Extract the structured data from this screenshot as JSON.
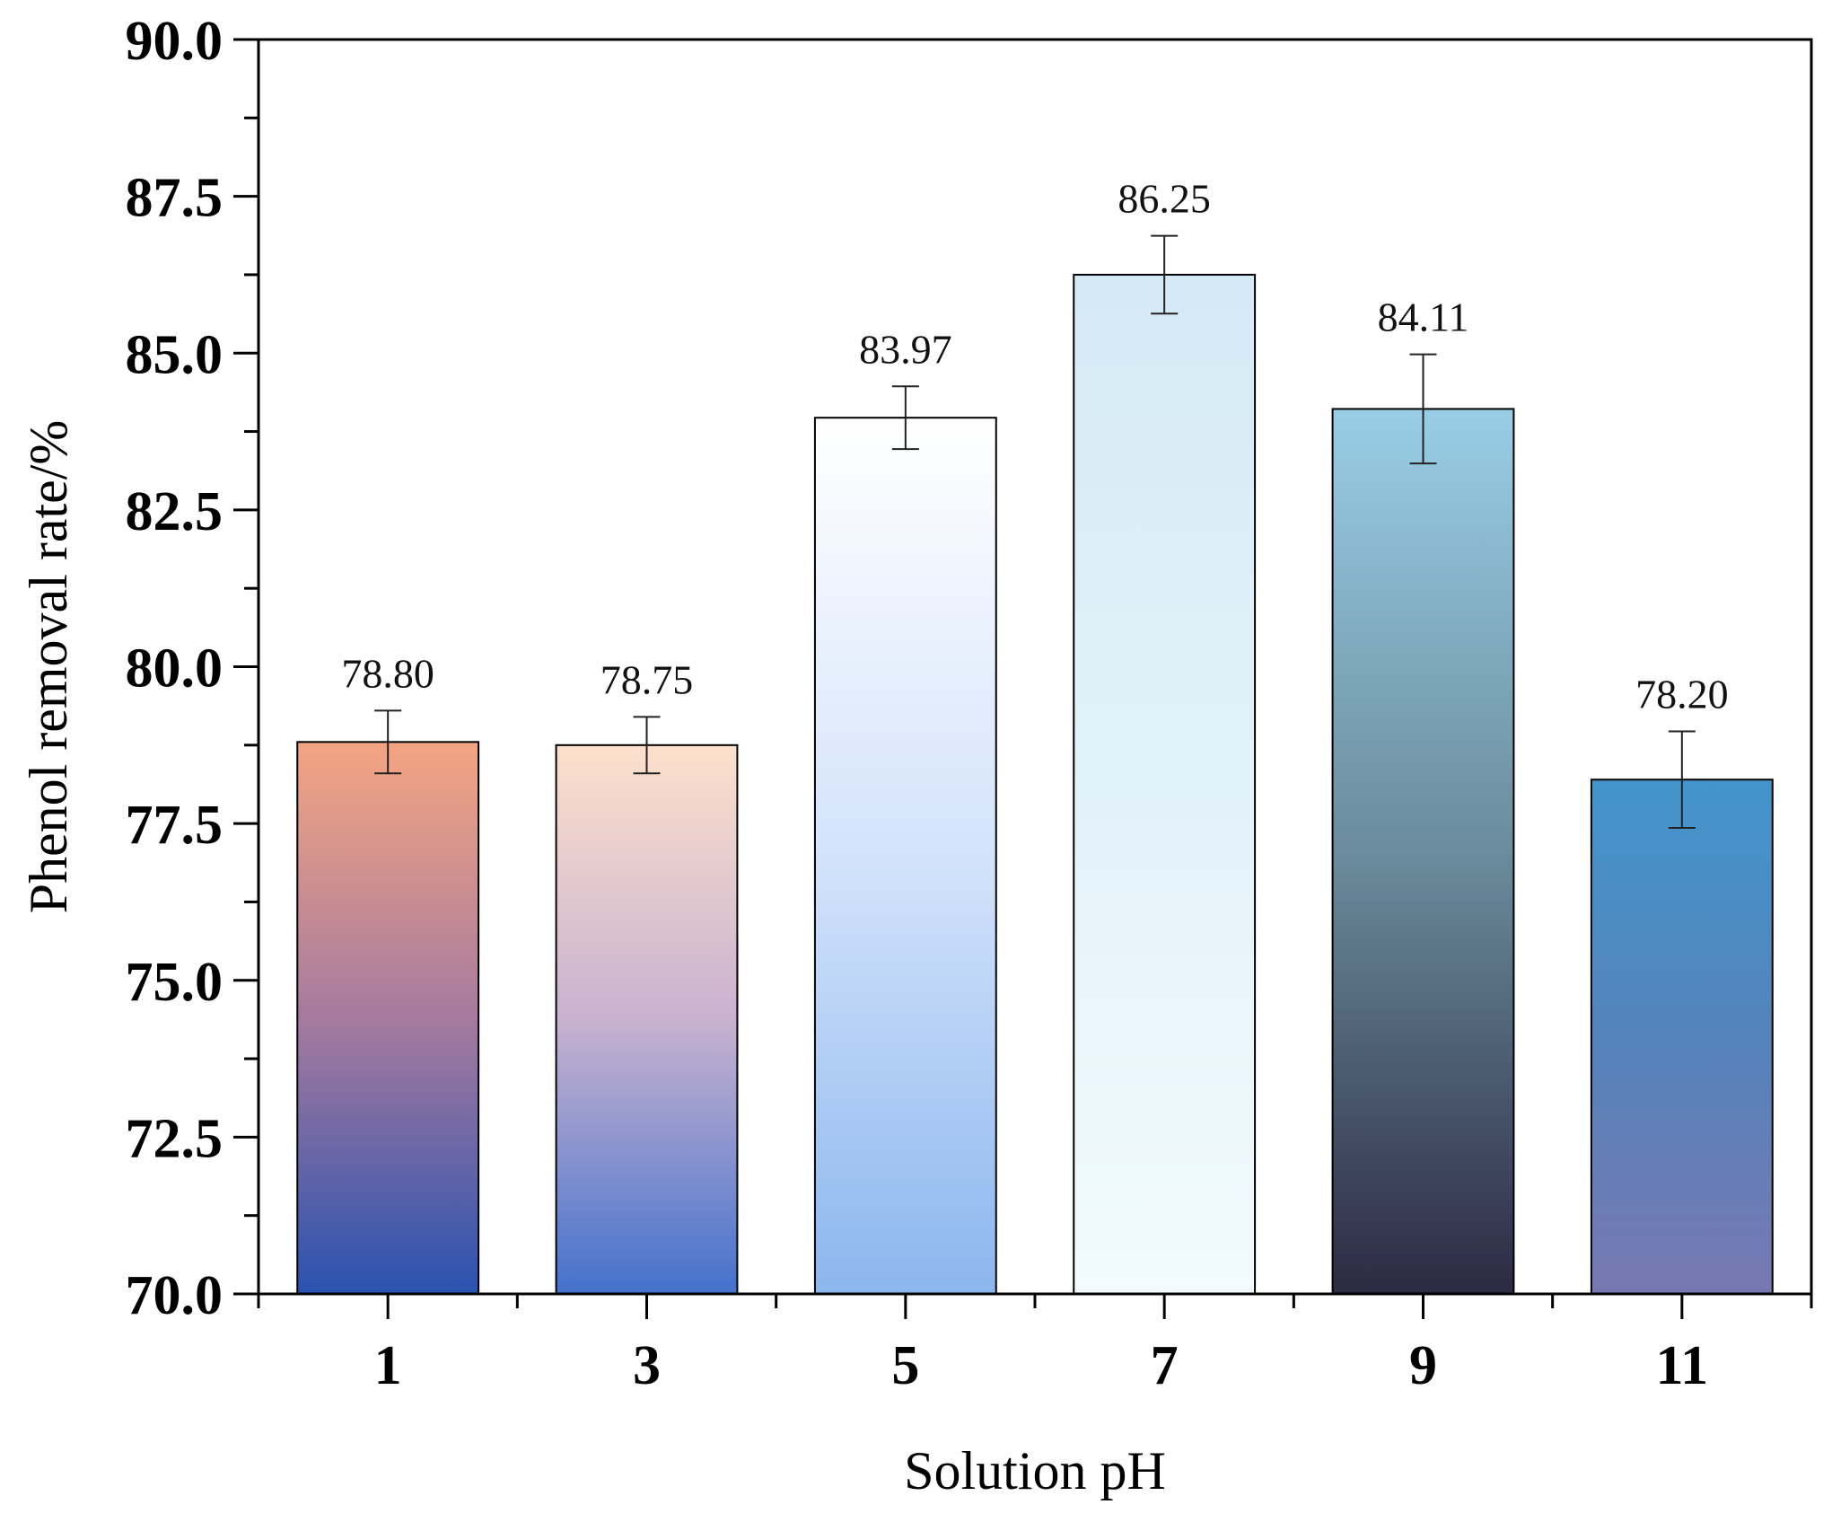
{
  "chart_data": {
    "type": "bar",
    "title": "",
    "xlabel": "Solution pH",
    "ylabel": "Phenol removal rate/%",
    "ylim": [
      70.0,
      90.0
    ],
    "yticks": [
      "70.0",
      "72.5",
      "75.0",
      "77.5",
      "80.0",
      "82.5",
      "85.0",
      "87.5",
      "90.0"
    ],
    "categories": [
      "1",
      "3",
      "5",
      "7",
      "9",
      "11"
    ],
    "values": [
      78.8,
      78.75,
      83.97,
      86.25,
      84.11,
      78.2
    ],
    "value_labels": [
      "78.80",
      "78.75",
      "83.97",
      "86.25",
      "84.11",
      "78.20"
    ],
    "errors": [
      0.5,
      0.45,
      0.5,
      0.62,
      0.87,
      0.77
    ],
    "bar_gradients": [
      {
        "top": "#f4a582",
        "mid": "#a67a9e",
        "bottom": "#2a52b0"
      },
      {
        "top": "#fde0cc",
        "mid": "#c8b2d0",
        "bottom": "#4471cc"
      },
      {
        "top": "#ffffff",
        "mid": "#d3e3fb",
        "bottom": "#8bb6ee"
      },
      {
        "top": "#d5eaf5",
        "mid": "#e2f2f9",
        "bottom": "#f2fbfd"
      },
      {
        "top": "#99cde6",
        "mid": "#6a8c9c",
        "bottom": "#2c2a43"
      },
      {
        "top": "#4395cc",
        "mid": "#5583bb",
        "bottom": "#7778b2"
      }
    ],
    "grid": false,
    "legend": "none"
  }
}
